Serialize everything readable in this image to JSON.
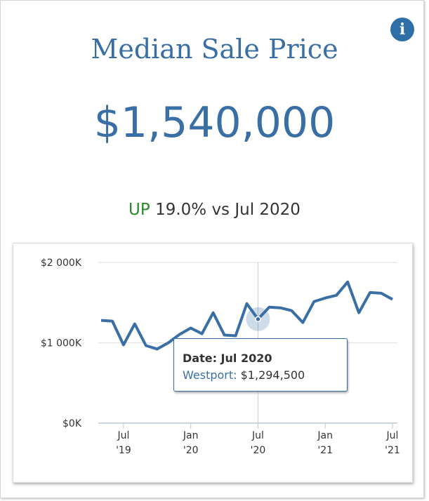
{
  "header": {
    "title": "Median Sale Price",
    "value": "$1,540,000",
    "change_direction": "UP",
    "change_text": "19.0% vs Jul 2020",
    "info_icon": "info-icon"
  },
  "colors": {
    "line": "#3a6fa5",
    "up": "#2a8a2a"
  },
  "tooltip": {
    "date_label": "Date: Jul 2020",
    "series_label": "Westport:",
    "series_value": "$1,294,500"
  },
  "chart_data": {
    "type": "line",
    "title": "Median Sale Price",
    "series": [
      {
        "name": "Westport",
        "values": [
          1278,
          1270,
          974,
          1235,
          965,
          922,
          1000,
          1104,
          1183,
          1113,
          1374,
          1096,
          1087,
          1487,
          1294.5,
          1443,
          1435,
          1400,
          1252,
          1513,
          1557,
          1591,
          1757,
          1374,
          1626,
          1617,
          1540
        ]
      }
    ],
    "x_start": "May 2019",
    "x_end": "Jul 2021",
    "ylim": [
      0,
      2000
    ],
    "yticks": [
      {
        "v": 0,
        "label": "$0K"
      },
      {
        "v": 1000,
        "label": "$1 000K"
      },
      {
        "v": 2000,
        "label": "$2 000K"
      }
    ],
    "xticks": [
      {
        "i": 2,
        "l1": "Jul",
        "l2": "'19"
      },
      {
        "i": 8,
        "l1": "Jan",
        "l2": "'20"
      },
      {
        "i": 14,
        "l1": "Jul",
        "l2": "'20"
      },
      {
        "i": 20,
        "l1": "Jan",
        "l2": "'21"
      },
      {
        "i": 26,
        "l1": "Jul",
        "l2": "'21"
      }
    ],
    "highlight_index": 14,
    "grid": true
  }
}
